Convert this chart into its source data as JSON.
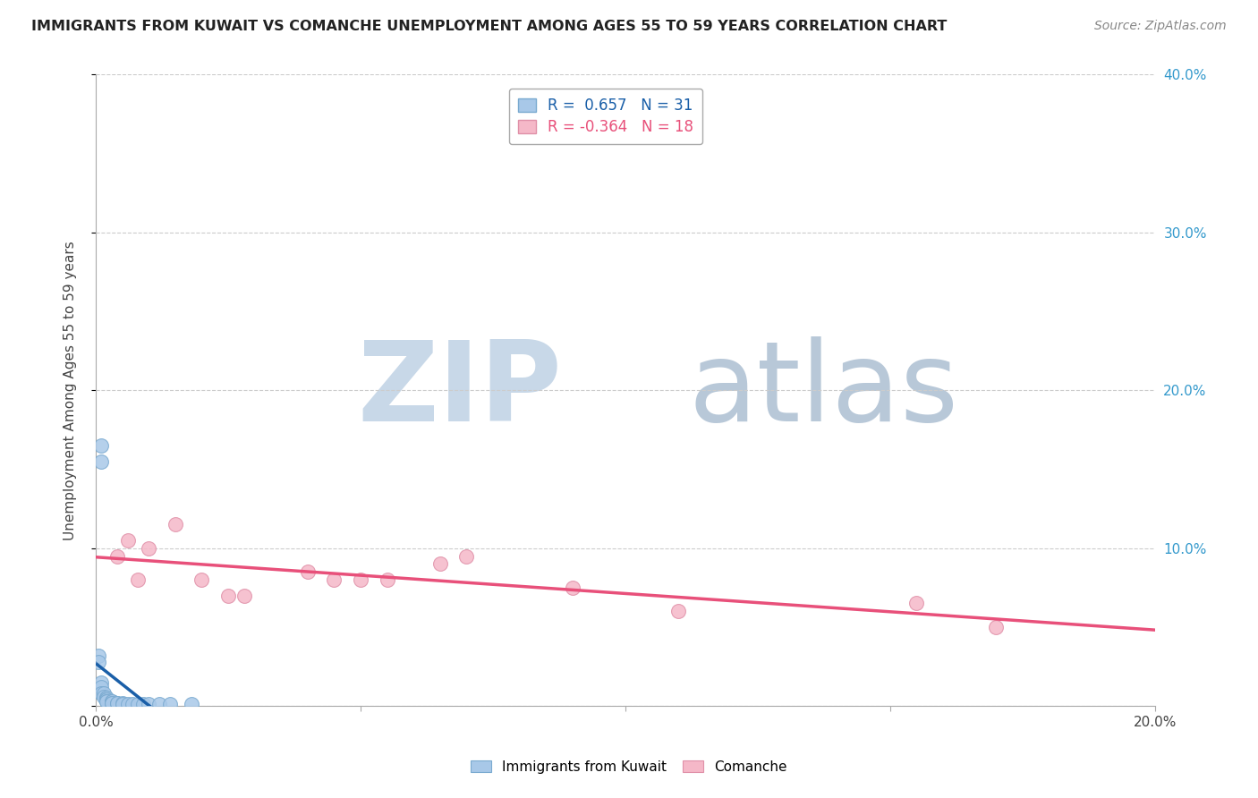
{
  "title": "IMMIGRANTS FROM KUWAIT VS COMANCHE UNEMPLOYMENT AMONG AGES 55 TO 59 YEARS CORRELATION CHART",
  "source": "Source: ZipAtlas.com",
  "ylabel": "Unemployment Among Ages 55 to 59 years",
  "xlim": [
    0.0,
    0.2
  ],
  "ylim": [
    0.0,
    0.4
  ],
  "xtick_positions": [
    0.0,
    0.05,
    0.1,
    0.15,
    0.2
  ],
  "xtick_labels": [
    "0.0%",
    "",
    "",
    "",
    "20.0%"
  ],
  "yticks": [
    0.0,
    0.1,
    0.2,
    0.3,
    0.4
  ],
  "ytick_labels_right": [
    "",
    "10.0%",
    "20.0%",
    "30.0%",
    "40.0%"
  ],
  "kuwait_R": 0.657,
  "kuwait_N": 31,
  "comanche_R": -0.364,
  "comanche_N": 18,
  "kuwait_color": "#a8c8e8",
  "comanche_color": "#f5b8c8",
  "kuwait_line_color": "#1a5fa8",
  "comanche_line_color": "#e8507a",
  "dashed_color": "#aaccee",
  "kuwait_dots": [
    [
      0.0005,
      0.032
    ],
    [
      0.0005,
      0.028
    ],
    [
      0.001,
      0.165
    ],
    [
      0.001,
      0.155
    ],
    [
      0.001,
      0.015
    ],
    [
      0.001,
      0.012
    ],
    [
      0.001,
      0.008
    ],
    [
      0.0015,
      0.008
    ],
    [
      0.0015,
      0.006
    ],
    [
      0.002,
      0.005
    ],
    [
      0.002,
      0.005
    ],
    [
      0.002,
      0.004
    ],
    [
      0.002,
      0.004
    ],
    [
      0.002,
      0.003
    ],
    [
      0.002,
      0.003
    ],
    [
      0.003,
      0.003
    ],
    [
      0.003,
      0.003
    ],
    [
      0.003,
      0.002
    ],
    [
      0.003,
      0.002
    ],
    [
      0.004,
      0.002
    ],
    [
      0.004,
      0.002
    ],
    [
      0.005,
      0.002
    ],
    [
      0.005,
      0.001
    ],
    [
      0.006,
      0.001
    ],
    [
      0.007,
      0.001
    ],
    [
      0.008,
      0.001
    ],
    [
      0.009,
      0.001
    ],
    [
      0.01,
      0.001
    ],
    [
      0.012,
      0.001
    ],
    [
      0.014,
      0.001
    ],
    [
      0.018,
      0.001
    ]
  ],
  "comanche_dots": [
    [
      0.004,
      0.095
    ],
    [
      0.006,
      0.105
    ],
    [
      0.008,
      0.08
    ],
    [
      0.01,
      0.1
    ],
    [
      0.015,
      0.115
    ],
    [
      0.02,
      0.08
    ],
    [
      0.025,
      0.07
    ],
    [
      0.028,
      0.07
    ],
    [
      0.04,
      0.085
    ],
    [
      0.045,
      0.08
    ],
    [
      0.05,
      0.08
    ],
    [
      0.055,
      0.08
    ],
    [
      0.065,
      0.09
    ],
    [
      0.07,
      0.095
    ],
    [
      0.09,
      0.075
    ],
    [
      0.11,
      0.06
    ],
    [
      0.155,
      0.065
    ],
    [
      0.17,
      0.05
    ]
  ],
  "background_color": "#ffffff",
  "grid_color": "#cccccc",
  "watermark_zip": "ZIP",
  "watermark_atlas": "atlas",
  "watermark_color_zip": "#c8d8e8",
  "watermark_color_atlas": "#b8c8d8"
}
